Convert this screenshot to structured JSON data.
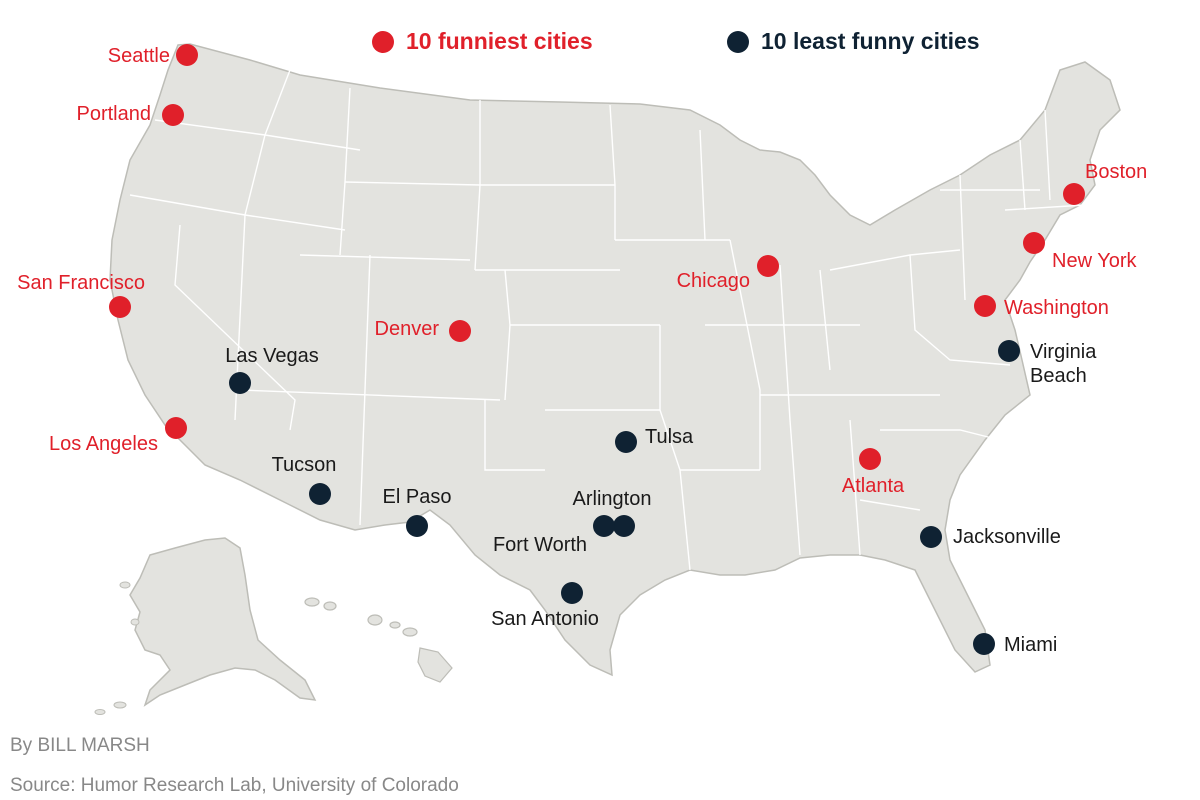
{
  "colors": {
    "funny": "#e0202a",
    "least_funny": "#0f2233",
    "land": "#e3e3df",
    "land_stroke": "#bdbdb7",
    "credit_text": "#888888"
  },
  "legend": {
    "funny_label": "10 funniest cities",
    "least_funny_label": "10 least funny cities"
  },
  "credits": {
    "byline": "By BILL MARSH",
    "source": "Source: Humor Research Lab, University of Colorado"
  },
  "cities": [
    {
      "id": "seattle",
      "name": "Seattle",
      "category": "funny"
    },
    {
      "id": "portland",
      "name": "Portland",
      "category": "funny"
    },
    {
      "id": "san-francisco",
      "name": "San Francisco",
      "category": "funny"
    },
    {
      "id": "los-angeles",
      "name": "Los Angeles",
      "category": "funny"
    },
    {
      "id": "denver",
      "name": "Denver",
      "category": "funny"
    },
    {
      "id": "chicago",
      "name": "Chicago",
      "category": "funny"
    },
    {
      "id": "atlanta",
      "name": "Atlanta",
      "category": "funny"
    },
    {
      "id": "boston",
      "name": "Boston",
      "category": "funny"
    },
    {
      "id": "new-york",
      "name": "New York",
      "category": "funny"
    },
    {
      "id": "washington",
      "name": "Washington",
      "category": "funny"
    },
    {
      "id": "las-vegas",
      "name": "Las Vegas",
      "category": "least_funny"
    },
    {
      "id": "tucson",
      "name": "Tucson",
      "category": "least_funny"
    },
    {
      "id": "el-paso",
      "name": "El Paso",
      "category": "least_funny"
    },
    {
      "id": "arlington",
      "name": "Arlington",
      "category": "least_funny"
    },
    {
      "id": "fort-worth",
      "name": "Fort Worth",
      "category": "least_funny"
    },
    {
      "id": "san-antonio",
      "name": "San Antonio",
      "category": "least_funny"
    },
    {
      "id": "tulsa",
      "name": "Tulsa",
      "category": "least_funny"
    },
    {
      "id": "jacksonville",
      "name": "Jacksonville",
      "category": "least_funny"
    },
    {
      "id": "miami",
      "name": "Miami",
      "category": "least_funny"
    },
    {
      "id": "virginia-beach",
      "name": "Virginia Beach",
      "category": "least_funny"
    }
  ]
}
